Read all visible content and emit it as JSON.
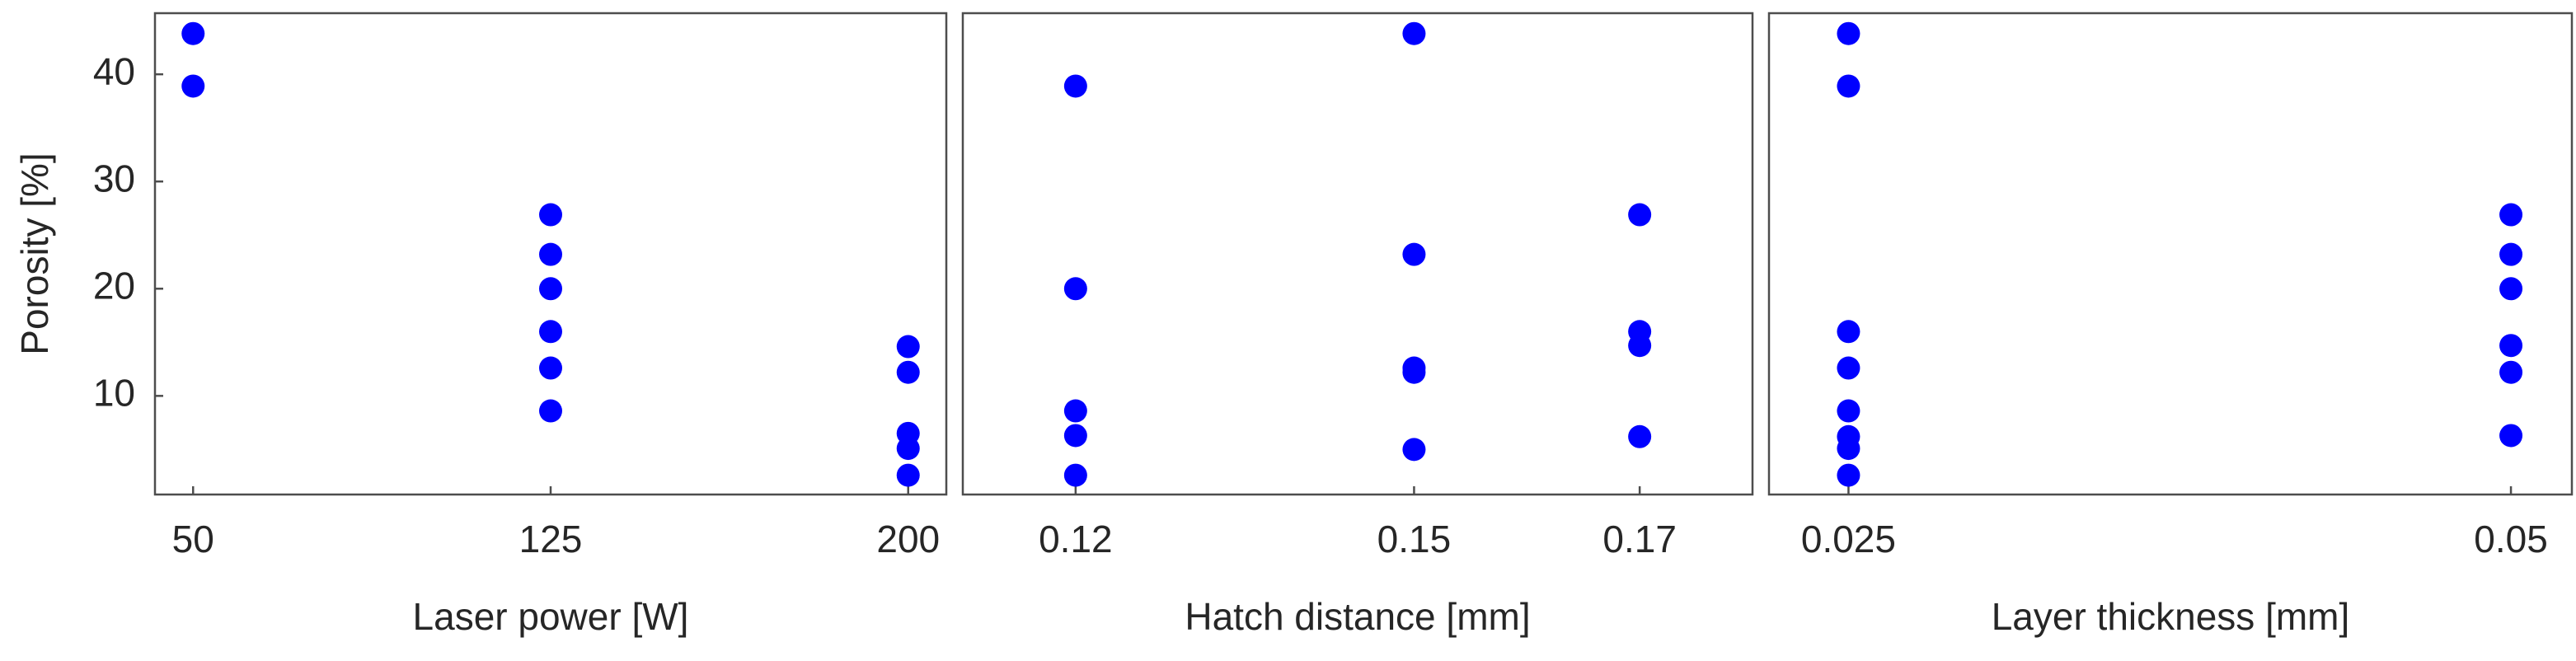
{
  "chart_data": [
    {
      "type": "scatter",
      "y_label": "Porosity [%]",
      "x_label": "Laser power [W]",
      "color": "#0000ff",
      "x": [
        50,
        50,
        125,
        125,
        125,
        125,
        125,
        125,
        200,
        200,
        200,
        200,
        200
      ],
      "values": [
        43.8,
        38.9,
        26.9,
        23.2,
        20,
        16,
        12.6,
        8.6,
        14.6,
        12.2,
        6.5,
        5.1,
        2.6
      ],
      "xlim": [
        42,
        208
      ],
      "xticks": [
        50,
        125,
        200
      ],
      "ylim": [
        0.8,
        45.7
      ],
      "yticks": [
        10,
        20,
        30,
        40
      ]
    },
    {
      "type": "scatter",
      "x_label": "Hatch distance [mm]",
      "color": "#0000ff",
      "x": [
        0.12,
        0.12,
        0.12,
        0.12,
        0.12,
        0.15,
        0.15,
        0.15,
        0.15,
        0.15,
        0.17,
        0.17,
        0.17,
        0.17
      ],
      "values": [
        38.9,
        20,
        8.6,
        6.3,
        2.6,
        43.8,
        23.2,
        12.6,
        12.2,
        5.0,
        26.9,
        16,
        14.7,
        6.2
      ],
      "xlim": [
        0.11,
        0.18
      ],
      "xticks": [
        0.12,
        0.15,
        0.17
      ],
      "ylim": [
        0.8,
        45.7
      ]
    },
    {
      "type": "scatter",
      "x_label": "Layer thickness [mm]",
      "color": "#0000ff",
      "x": [
        0.025,
        0.025,
        0.025,
        0.025,
        0.025,
        0.025,
        0.025,
        0.025,
        0.05,
        0.05,
        0.05,
        0.05,
        0.05,
        0.05
      ],
      "values": [
        43.8,
        38.9,
        16,
        12.6,
        8.6,
        6.2,
        5.1,
        2.6,
        26.9,
        23.2,
        20,
        14.7,
        12.2,
        6.3
      ],
      "xlim": [
        0.022,
        0.0523
      ],
      "xticks": [
        0.025,
        0.05
      ],
      "ylim": [
        0.8,
        45.7
      ]
    }
  ]
}
